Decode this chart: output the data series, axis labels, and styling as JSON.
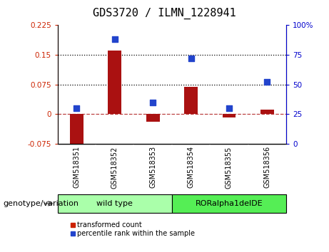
{
  "title": "GDS3720 / ILMN_1228941",
  "samples": [
    "GSM518351",
    "GSM518352",
    "GSM518353",
    "GSM518354",
    "GSM518355",
    "GSM518356"
  ],
  "transformed_counts": [
    -0.095,
    0.16,
    -0.02,
    0.068,
    -0.008,
    0.012
  ],
  "percentile_ranks": [
    30,
    88,
    35,
    72,
    30,
    52
  ],
  "left_ylim": [
    -0.075,
    0.225
  ],
  "left_yticks": [
    -0.075,
    0,
    0.075,
    0.15,
    0.225
  ],
  "right_ylim": [
    0,
    100
  ],
  "right_yticks": [
    0,
    25,
    50,
    75,
    100
  ],
  "right_yticklabels": [
    "0",
    "25",
    "50",
    "75",
    "100%"
  ],
  "bar_color": "#aa1111",
  "dot_color": "#2244cc",
  "groups": [
    {
      "label": "wild type",
      "samples": [
        0,
        1,
        2
      ],
      "color": "#aaffaa"
    },
    {
      "label": "RORalpha1delDE",
      "samples": [
        3,
        4,
        5
      ],
      "color": "#55ee55"
    }
  ],
  "group_header": "genotype/variation",
  "legend_items": [
    {
      "label": "transformed count",
      "color": "#cc2200"
    },
    {
      "label": "percentile rank within the sample",
      "color": "#2244cc"
    }
  ],
  "dotted_lines": [
    0.075,
    0.15
  ],
  "title_fontsize": 11,
  "tick_fontsize": 7.5,
  "label_fontsize": 8,
  "background_color": "#ffffff",
  "plot_bg_color": "#ffffff",
  "sample_box_color": "#cccccc",
  "dot_size": 40,
  "bar_width": 0.35
}
